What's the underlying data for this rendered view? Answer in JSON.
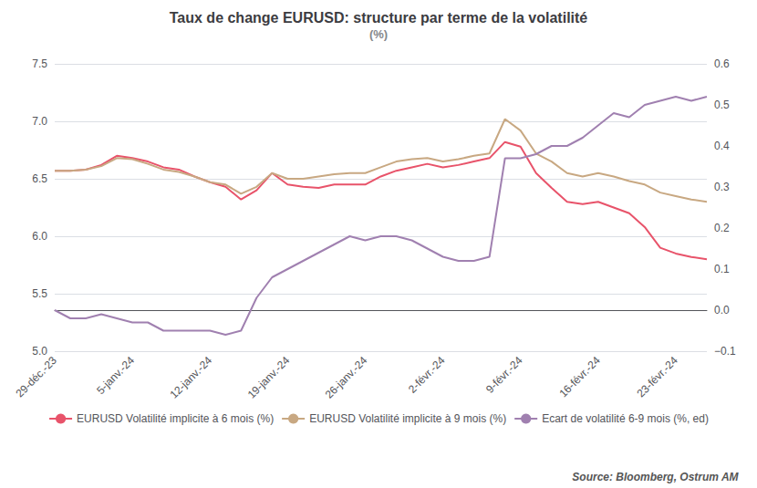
{
  "chart_data": {
    "type": "line",
    "title": "Taux de change EURUSD: structure par terme de la volatilité",
    "subtitle": "(%)",
    "annotations": [
      "Source: Bloomberg, Ostrum AM"
    ],
    "categories": [
      "29-déc.-23",
      null,
      null,
      null,
      null,
      "5-janv.-24",
      null,
      null,
      null,
      null,
      "12-janv.-24",
      null,
      null,
      null,
      null,
      "19-janv.-24",
      null,
      null,
      null,
      null,
      "26-janv.-24",
      null,
      null,
      null,
      null,
      "2-févr.-24",
      null,
      null,
      null,
      null,
      "9-févr.-24",
      null,
      null,
      null,
      null,
      "16-févr.-24",
      null,
      null,
      null,
      null,
      "23-févr.-24",
      null,
      null
    ],
    "series": [
      {
        "name": "EURUSD Volatilité implicite à 6 mois (%)",
        "color": "#e8536a",
        "values": [
          6.57,
          6.57,
          6.58,
          6.62,
          6.7,
          6.68,
          6.65,
          6.6,
          6.58,
          6.52,
          6.47,
          6.43,
          6.32,
          6.4,
          6.55,
          6.45,
          6.43,
          6.42,
          6.45,
          6.45,
          6.45,
          6.52,
          6.57,
          6.6,
          6.63,
          6.6,
          6.62,
          6.65,
          6.68,
          6.82,
          6.78,
          6.55,
          6.42,
          6.3,
          6.28,
          6.3,
          6.25,
          6.2,
          6.08,
          5.9,
          5.85,
          5.82,
          5.8
        ]
      },
      {
        "name": "EURUSD Volatilité implicite à 9 mois (%)",
        "color": "#c8a882",
        "values": [
          6.57,
          6.57,
          6.58,
          6.61,
          6.68,
          6.67,
          6.63,
          6.58,
          6.56,
          6.52,
          6.47,
          6.45,
          6.37,
          6.43,
          6.55,
          6.5,
          6.5,
          6.52,
          6.54,
          6.55,
          6.55,
          6.6,
          6.65,
          6.67,
          6.68,
          6.65,
          6.67,
          6.7,
          6.72,
          7.02,
          6.92,
          6.72,
          6.65,
          6.55,
          6.52,
          6.55,
          6.52,
          6.48,
          6.45,
          6.38,
          6.35,
          6.32,
          6.3
        ]
      },
      {
        "name": "Ecart de volatilité 6-9 mois (%, ed)",
        "color": "#a080b0",
        "axis": "y2",
        "values": [
          0.0,
          -0.02,
          -0.02,
          -0.01,
          -0.02,
          -0.03,
          -0.03,
          -0.05,
          -0.05,
          -0.05,
          -0.05,
          -0.06,
          -0.05,
          0.03,
          0.08,
          0.1,
          0.12,
          0.14,
          0.16,
          0.18,
          0.17,
          0.18,
          0.18,
          0.17,
          0.15,
          0.13,
          0.12,
          0.12,
          0.13,
          0.37,
          0.37,
          0.38,
          0.4,
          0.4,
          0.42,
          0.45,
          0.48,
          0.47,
          0.5,
          0.51,
          0.52,
          0.51,
          0.52
        ]
      }
    ],
    "ylim": [
      5.0,
      7.5
    ],
    "yticks": [
      {
        "value": 5.0,
        "label": "5.0"
      },
      5.5,
      {
        "value": 6.0,
        "label": "6.0"
      },
      6.5,
      {
        "value": 7.0,
        "label": "7.0"
      },
      7.5
    ],
    "y2lim": [
      -0.1,
      0.6
    ],
    "y2ticks": [
      {
        "value": -0.1,
        "label": "−0.1"
      },
      {
        "value": 0.0,
        "label": "0.0"
      },
      0.1,
      0.2,
      0.3,
      0.4,
      0.5,
      0.6
    ],
    "grid": true,
    "legend": "bottom"
  }
}
